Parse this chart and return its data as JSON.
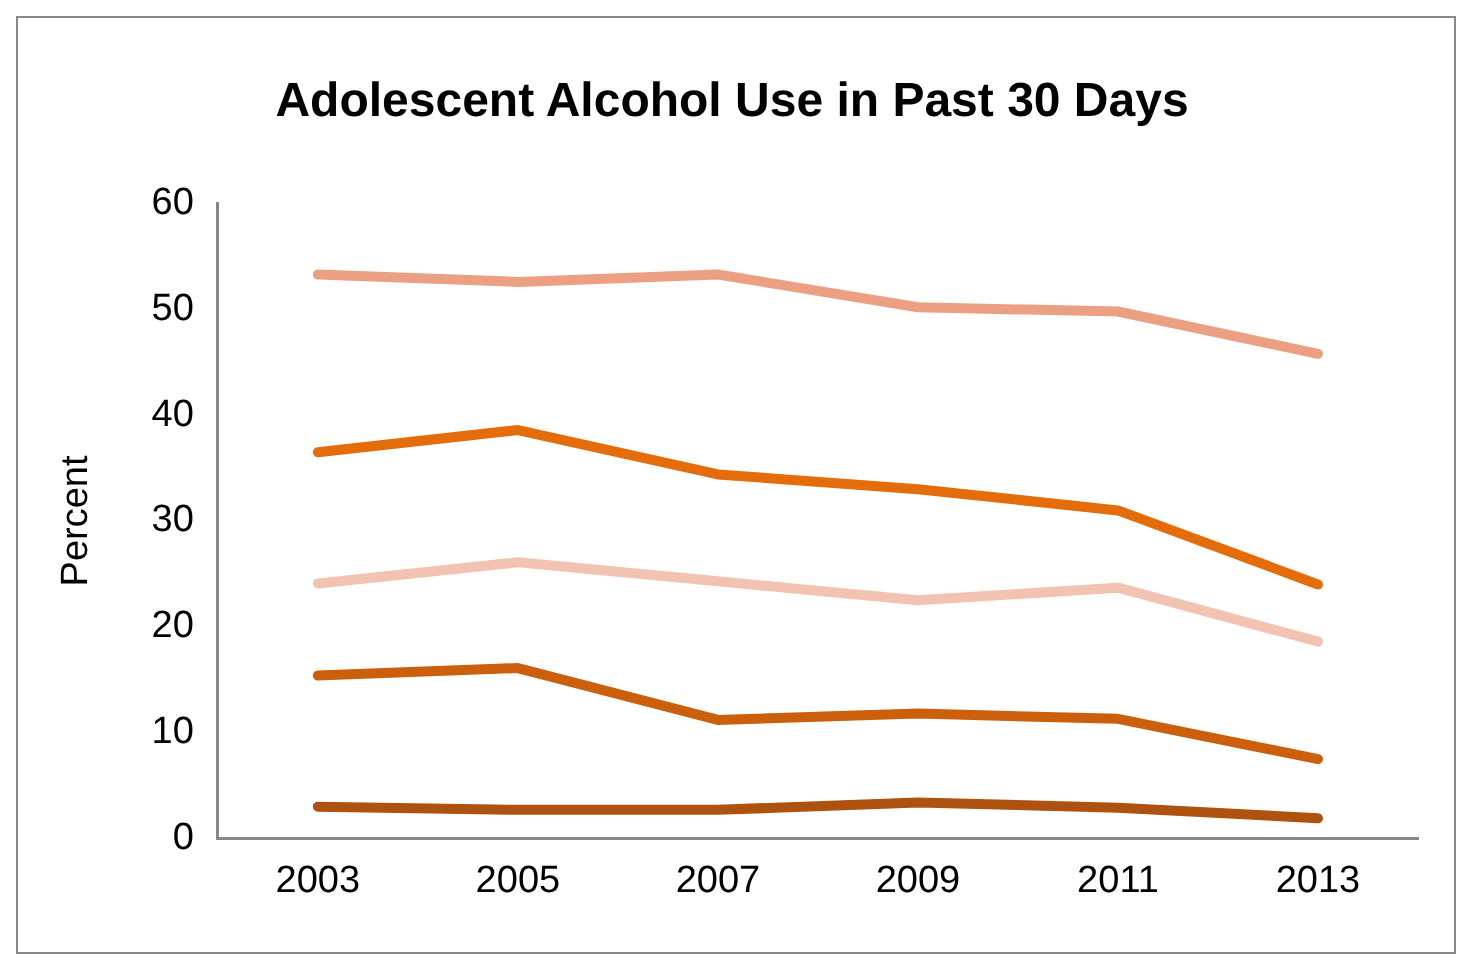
{
  "chart_data": {
    "type": "line",
    "title": "Adolescent Alcohol Use in Past 30 Days",
    "ylabel": "Percent",
    "categories": [
      "2003",
      "2005",
      "2007",
      "2009",
      "2011",
      "2013"
    ],
    "series": [
      {
        "color": "#eba084",
        "values": [
          53.3,
          52.6,
          53.3,
          50.2,
          49.8,
          45.8
        ]
      },
      {
        "color": "#e46c0a",
        "values": [
          36.5,
          38.6,
          34.4,
          33.0,
          31.0,
          24.0
        ]
      },
      {
        "color": "#f3c3b2",
        "values": [
          24.1,
          26.1,
          24.3,
          22.5,
          23.7,
          18.6
        ]
      },
      {
        "color": "#cc5f0c",
        "values": [
          15.4,
          16.1,
          11.2,
          11.8,
          11.3,
          7.5
        ]
      },
      {
        "color": "#b0520f",
        "values": [
          3.0,
          2.7,
          2.7,
          3.4,
          2.9,
          1.9
        ]
      }
    ],
    "ylim": [
      0,
      60
    ],
    "yticks": [
      0,
      10,
      20,
      30,
      40,
      50,
      60
    ],
    "grid": false,
    "legend": false,
    "marker": "none",
    "line_style": "solid"
  }
}
